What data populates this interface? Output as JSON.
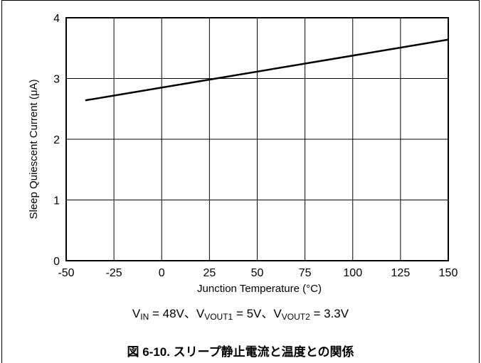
{
  "chart_data": {
    "type": "line",
    "xlabel": "Junction Temperature (°C)",
    "ylabel": "Sleep Quiescent Current (μA)",
    "xlim": [
      -50,
      150
    ],
    "ylim": [
      0,
      4
    ],
    "xticks": [
      -50,
      -25,
      0,
      25,
      50,
      75,
      100,
      125,
      150
    ],
    "yticks": [
      0,
      1,
      2,
      3,
      4
    ],
    "grid": true,
    "series": [
      {
        "x": [
          -40,
          150
        ],
        "y": [
          2.64,
          3.64
        ]
      }
    ]
  },
  "conditions": {
    "vin_label": "V",
    "vin_sub": "IN",
    "vin_value": " = 48V、",
    "vout1_label": "V",
    "vout1_sub": "VOUT1",
    "vout1_value": " = 5V、",
    "vout2_label": "V",
    "vout2_sub": "VOUT2",
    "vout2_value": " = 3.3V"
  },
  "caption": "図 6-10. スリープ静止電流と温度との関係"
}
